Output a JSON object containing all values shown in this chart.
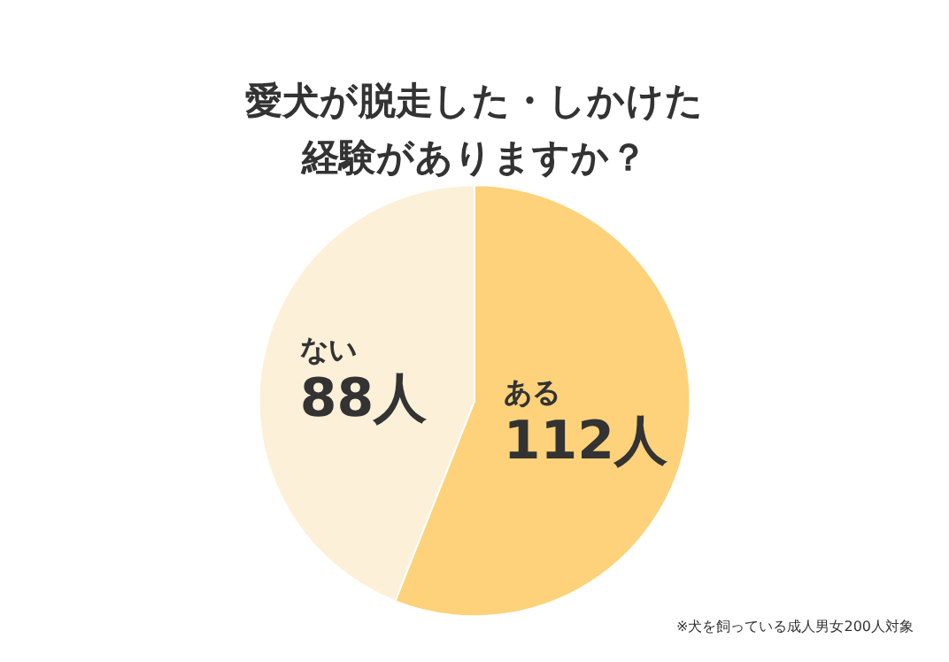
{
  "chart_data": {
    "type": "pie",
    "title": "愛犬が脱走した・しかけた経験がありますか？",
    "categories": [
      "ある",
      "ない"
    ],
    "values": [
      112,
      88
    ],
    "colors": [
      "#fdd27a",
      "#fdf0d8"
    ],
    "value_labels": [
      "112人",
      "88人"
    ],
    "legend": false,
    "annotations": [
      "※犬を飼っている成人男女200人対象"
    ]
  }
}
